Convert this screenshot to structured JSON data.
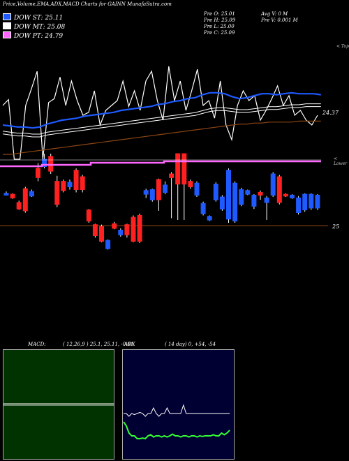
{
  "header": {
    "title": "Price,Volume,EMA,ADX,MACD Charts for GAINN MunafaSutra.com",
    "legend": [
      {
        "label": "DOW ST: 25.11",
        "color": "#1e5aff"
      },
      {
        "label": "DOW MT: 25.08",
        "color": "#ffffff"
      },
      {
        "label": "DOW PT: 24.79",
        "color": "#ff66ff"
      }
    ],
    "prev": {
      "o": "Pre   O: 25.01",
      "h": "Pre   H: 25.09",
      "l": "Pre   L: 25.00",
      "c": "Pre   C: 25.09"
    },
    "avg": {
      "v": "Avg V: 0   M",
      "pre_v": "Pre   V: 0.001 M"
    }
  },
  "main": {
    "top_label": "< Top",
    "lower_label": "< Lower",
    "price_label": "24.37",
    "base_label": "25"
  },
  "macd": {
    "title": "MACD:",
    "params": "( 12,26,9 ) 25.1, 25.11, -0.01"
  },
  "adx": {
    "title": "ADX",
    "params": "( 14   day) 0, +54, -54"
  },
  "colors": {
    "up": "#1e5aff",
    "down": "#ff2020",
    "ema_short": "#1e5aff",
    "ema_mid": "#ffffff",
    "ema_long": "#8b4513",
    "pt": "#ff66ff",
    "adx_plus": "#33ff33",
    "macd_bg": "#003300",
    "adx_bg": "#000033"
  },
  "chart_data": {
    "type": "candlestick",
    "candles": [
      {
        "o": 0.55,
        "c": 0.57,
        "h": 0.59,
        "l": 0.55,
        "up": true
      },
      {
        "o": 0.56,
        "c": 0.52,
        "h": 0.57,
        "l": 0.51,
        "up": false
      },
      {
        "o": 0.4,
        "c": 0.47,
        "h": 0.49,
        "l": 0.39,
        "up": false
      },
      {
        "o": 0.38,
        "c": 0.62,
        "h": 0.64,
        "l": 0.36,
        "up": false
      },
      {
        "o": 0.54,
        "c": 0.59,
        "h": 0.61,
        "l": 0.53,
        "up": true
      },
      {
        "o": 0.84,
        "c": 0.74,
        "h": 0.9,
        "l": 0.7,
        "up": false
      },
      {
        "o": 0.86,
        "c": 0.94,
        "h": 1.0,
        "l": 0.84,
        "up": true
      },
      {
        "o": 0.97,
        "c": 0.81,
        "h": 1.0,
        "l": 0.78,
        "up": false
      },
      {
        "o": 0.7,
        "c": 0.45,
        "h": 0.76,
        "l": 0.42,
        "up": false
      },
      {
        "o": 0.6,
        "c": 0.7,
        "h": 0.72,
        "l": 0.58,
        "up": false
      },
      {
        "o": 0.69,
        "c": 0.64,
        "h": 0.72,
        "l": 0.61,
        "up": true
      },
      {
        "o": 0.82,
        "c": 0.61,
        "h": 0.84,
        "l": 0.58,
        "up": false
      },
      {
        "o": 0.75,
        "c": 0.61,
        "h": 0.77,
        "l": 0.58,
        "up": false
      },
      {
        "o": 0.39,
        "c": 0.27,
        "h": 0.4,
        "l": 0.25,
        "up": false
      },
      {
        "o": 0.23,
        "c": 0.11,
        "h": 0.24,
        "l": 0.09,
        "up": false
      },
      {
        "o": 0.21,
        "c": 0.05,
        "h": 0.23,
        "l": 0.04,
        "up": false
      },
      {
        "o": 0.06,
        "c": -0.03,
        "h": 0.07,
        "l": -0.04,
        "up": true
      },
      {
        "o": 0.19,
        "c": 0.24,
        "h": 0.26,
        "l": 0.18,
        "up": false
      },
      {
        "o": 0.12,
        "c": 0.17,
        "h": 0.19,
        "l": 0.1,
        "up": true
      },
      {
        "o": 0.23,
        "c": 0.12,
        "h": 0.24,
        "l": 0.09,
        "up": false
      },
      {
        "o": 0.31,
        "c": 0.05,
        "h": 0.33,
        "l": 0.04,
        "up": false
      },
      {
        "o": 0.33,
        "c": 0.05,
        "h": 0.35,
        "l": 0.03,
        "up": false
      },
      {
        "o": 0.56,
        "c": 0.6,
        "h": 0.62,
        "l": 0.52,
        "up": true
      },
      {
        "o": 0.61,
        "c": 0.5,
        "h": 0.62,
        "l": 0.48,
        "up": true
      },
      {
        "o": 0.72,
        "c": 0.5,
        "h": 0.73,
        "l": 0.38,
        "up": false
      },
      {
        "o": 0.58,
        "c": 0.66,
        "h": 0.7,
        "l": 0.56,
        "up": true
      },
      {
        "o": 0.78,
        "c": 0.74,
        "h": 0.8,
        "l": 0.3,
        "up": false
      },
      {
        "o": 1.0,
        "c": 0.67,
        "h": 1.0,
        "l": 0.28,
        "up": false
      },
      {
        "o": 1.0,
        "c": 0.67,
        "h": 1.0,
        "l": 0.28,
        "up": false
      },
      {
        "o": 0.7,
        "c": 0.64,
        "h": 0.72,
        "l": 0.62,
        "up": false
      },
      {
        "o": 0.68,
        "c": 0.55,
        "h": 0.7,
        "l": 0.53,
        "up": true
      },
      {
        "o": 0.46,
        "c": 0.35,
        "h": 0.48,
        "l": 0.33,
        "up": true
      },
      {
        "o": 0.32,
        "c": 0.28,
        "h": 0.33,
        "l": 0.27,
        "up": true
      },
      {
        "o": 0.67,
        "c": 0.5,
        "h": 0.69,
        "l": 0.48,
        "up": true
      },
      {
        "o": 0.53,
        "c": 0.4,
        "h": 0.55,
        "l": 0.38,
        "up": true
      },
      {
        "o": 0.82,
        "c": 0.29,
        "h": 0.84,
        "l": 0.25,
        "up": true
      },
      {
        "o": 0.68,
        "c": 0.27,
        "h": 0.7,
        "l": 0.25,
        "up": true
      },
      {
        "o": 0.61,
        "c": 0.45,
        "h": 0.63,
        "l": 0.43,
        "up": true
      },
      {
        "o": 0.6,
        "c": 0.56,
        "h": 0.61,
        "l": 0.55,
        "up": true
      },
      {
        "o": 0.55,
        "c": 0.43,
        "h": 0.56,
        "l": 0.4,
        "up": true
      },
      {
        "o": 0.58,
        "c": 0.55,
        "h": 0.6,
        "l": 0.5,
        "up": false
      },
      {
        "o": 0.52,
        "c": 0.47,
        "h": 0.54,
        "l": 0.28,
        "up": true
      },
      {
        "o": 0.78,
        "c": 0.55,
        "h": 0.8,
        "l": 0.53,
        "up": true
      },
      {
        "o": 0.75,
        "c": 0.47,
        "h": 0.77,
        "l": 0.45,
        "up": false
      },
      {
        "o": 0.56,
        "c": 0.54,
        "h": 0.57,
        "l": 0.53,
        "up": false
      },
      {
        "o": 0.55,
        "c": 0.52,
        "h": 0.56,
        "l": 0.51,
        "up": true
      },
      {
        "o": 0.52,
        "c": 0.36,
        "h": 0.54,
        "l": 0.34,
        "up": true
      },
      {
        "o": 0.56,
        "c": 0.39,
        "h": 0.57,
        "l": 0.37,
        "up": true
      },
      {
        "o": 0.56,
        "c": 0.41,
        "h": 0.57,
        "l": 0.39,
        "up": true
      },
      {
        "o": 0.55,
        "c": 0.41,
        "h": 0.56,
        "l": 0.39,
        "up": true
      }
    ],
    "close_line": [
      0.55,
      0.61,
      0.0,
      0.0,
      0.55,
      0.72,
      0.9,
      0.0,
      0.58,
      0.62,
      0.84,
      0.55,
      0.8,
      0.6,
      0.45,
      0.48,
      0.7,
      0.35,
      0.5,
      0.55,
      0.6,
      0.8,
      0.54,
      0.7,
      0.5,
      0.8,
      0.9,
      0.6,
      0.4,
      0.95,
      0.6,
      0.8,
      0.5,
      0.7,
      0.92,
      0.55,
      0.6,
      0.42,
      0.8,
      0.35,
      0.2,
      0.55,
      0.7,
      0.6,
      0.65,
      0.4,
      0.5,
      0.62,
      0.75,
      0.55,
      0.65,
      0.45,
      0.5,
      0.4,
      0.35,
      0.45
    ],
    "ema_short": [
      0.35,
      0.34,
      0.33,
      0.33,
      0.32,
      0.33,
      0.36,
      0.38,
      0.4,
      0.41,
      0.42,
      0.44,
      0.45,
      0.46,
      0.47,
      0.48,
      0.5,
      0.51,
      0.52,
      0.53,
      0.54,
      0.56,
      0.57,
      0.59,
      0.6,
      0.62,
      0.63,
      0.66,
      0.68,
      0.68,
      0.67,
      0.64,
      0.62,
      0.63,
      0.65,
      0.67,
      0.67,
      0.66,
      0.67,
      0.68,
      0.67,
      0.67,
      0.67,
      0.66
    ],
    "ema_mid": [
      0.33,
      0.32,
      0.31,
      0.31,
      0.3,
      0.3,
      0.32,
      0.33,
      0.34,
      0.35,
      0.36,
      0.37,
      0.38,
      0.39,
      0.4,
      0.41,
      0.42,
      0.43,
      0.44,
      0.45,
      0.46,
      0.47,
      0.48,
      0.49,
      0.5,
      0.51,
      0.52,
      0.54,
      0.56,
      0.57,
      0.57,
      0.56,
      0.55,
      0.55,
      0.56,
      0.57,
      0.58,
      0.58,
      0.59,
      0.6,
      0.6,
      0.61,
      0.61,
      0.61
    ],
    "ema_long": [
      0.05,
      0.05,
      0.06,
      0.07,
      0.08,
      0.09,
      0.1,
      0.11,
      0.12,
      0.13,
      0.14,
      0.15,
      0.16,
      0.17,
      0.18,
      0.19,
      0.2,
      0.21,
      0.22,
      0.23,
      0.24,
      0.25,
      0.26,
      0.27,
      0.28,
      0.29,
      0.3,
      0.31,
      0.32,
      0.33,
      0.34,
      0.35,
      0.36,
      0.36,
      0.37,
      0.37,
      0.38,
      0.38,
      0.38,
      0.38,
      0.39,
      0.39,
      0.39,
      0.39
    ],
    "adx_white": [
      0.6,
      0.6,
      0.55,
      0.6,
      0.58,
      0.6,
      0.62,
      0.6,
      0.55,
      0.6,
      0.6,
      0.7,
      0.6,
      0.55,
      0.6,
      0.6,
      0.7,
      0.6,
      0.6,
      0.6,
      0.6,
      0.6,
      0.75,
      0.6,
      0.6,
      0.6,
      0.6,
      0.6,
      0.6,
      0.6,
      0.6,
      0.6,
      0.6,
      0.6,
      0.6,
      0.6,
      0.6,
      0.6,
      0.6,
      0.6
    ],
    "adx_green": [
      0.45,
      0.38,
      0.25,
      0.2,
      0.2,
      0.15,
      0.15,
      0.16,
      0.15,
      0.2,
      0.22,
      0.18,
      0.2,
      0.2,
      0.18,
      0.2,
      0.18,
      0.2,
      0.23,
      0.2,
      0.2,
      0.18,
      0.2,
      0.2,
      0.18,
      0.2,
      0.2,
      0.18,
      0.2,
      0.19,
      0.2,
      0.2,
      0.2,
      0.22,
      0.2,
      0.2,
      0.25,
      0.22,
      0.25,
      0.3
    ]
  }
}
